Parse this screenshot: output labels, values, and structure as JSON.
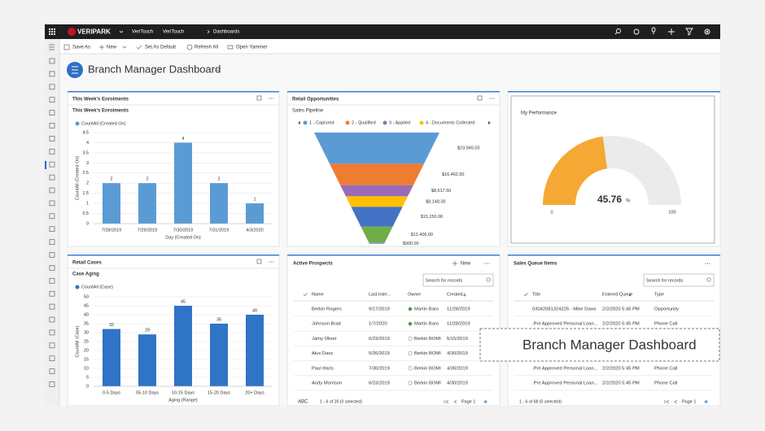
{
  "nav": {
    "brand": "VERIPARK",
    "app": "VeriTouch",
    "area": "VeriTouch",
    "page": "Dashboards"
  },
  "commands": [
    "Save As",
    "New",
    "Set As Default",
    "Refresh All",
    "Open Yammer"
  ],
  "title": "Branch Manager Dashboard",
  "callout": "Branch Manager Dashboard",
  "chart_data": [
    {
      "type": "bar",
      "panel_title": "This Week's Enrolments",
      "title": "This Week's Enrolments",
      "y_label": "CountAll (Created On)",
      "x_label": "Day (Created On)",
      "categories": [
        "7/28/2019",
        "7/29/2019",
        "7/30/2019",
        "7/31/2019",
        "4/3/2020"
      ],
      "series": [
        {
          "name": "CountAll (Created On)",
          "color": "#5b9bd5",
          "values": [
            2,
            2,
            4,
            2,
            1
          ]
        }
      ],
      "ylim": [
        0,
        4.5
      ],
      "yticks": [
        0,
        0.5,
        1,
        1.5,
        2,
        2.5,
        3,
        3.5,
        4,
        4.5
      ],
      "grid": true
    },
    {
      "type": "funnel",
      "panel_title": "Retail Opportunities",
      "title": "Sales Pipeline",
      "legend": [
        "1 - Captured",
        "2 - Qualified",
        "3 - Applied",
        "4 - Documents Collected"
      ],
      "values": [
        23945,
        16462.5,
        8517.5,
        8148,
        15150,
        12406,
        900
      ],
      "value_labels": [
        "$23,945.00",
        "$16,462.50",
        "$8,517.50",
        "$8,148.00",
        "$15,150.00",
        "$12,406.00",
        "$900.00"
      ],
      "colors": [
        "#5b9bd5",
        "#ed7d31",
        "#9b6bb5",
        "#ffc000",
        "#4472c4",
        "#70ad47",
        "#8fa8dc"
      ]
    },
    {
      "type": "gauge",
      "title": "My Performance",
      "value": 45.76,
      "unit": "%",
      "xlim": [
        0,
        100
      ],
      "color": "#f5a833"
    },
    {
      "type": "bar",
      "panel_title": "Retail Cases",
      "title": "Case Aging",
      "y_label": "CountAll (Case)",
      "x_label": "Aging (Range)",
      "categories": [
        "0-5 Days",
        "05-10 Days",
        "10-15 Days",
        "15-20 Days",
        "20+ Days"
      ],
      "series": [
        {
          "name": "CountAll (Case)",
          "color": "#2f74c6",
          "values": [
            32,
            29,
            45,
            35,
            40
          ]
        }
      ],
      "ylim": [
        0,
        50
      ],
      "yticks": [
        0,
        5,
        10,
        15,
        20,
        25,
        30,
        35,
        40,
        45,
        50
      ],
      "grid": true
    }
  ],
  "tables": [
    {
      "title": "Active Prospects",
      "new": "New",
      "search": "Search for records",
      "columns": [
        "Name",
        "Last Inter...",
        "Owner",
        "Created..."
      ],
      "rows": [
        [
          "Berkin Rogers",
          "9/17/2019",
          "Martin Baro",
          "11/28/2019"
        ],
        [
          "Johnson Brad",
          "1/7/2020",
          "Martin Baro",
          "11/28/2019"
        ],
        [
          "Jamy Oliver",
          "6/23/2019",
          "Berkin BOMI",
          "5/15/2019"
        ],
        [
          "Alux Dass",
          "5/26/2019",
          "Berkin BOMI",
          "4/30/2019"
        ],
        [
          "Paul Haris",
          "7/30/2019",
          "Berkin BOMI",
          "4/30/2019"
        ],
        [
          "Andy Morrison",
          "6/23/2019",
          "Berkin BOMI",
          "4/30/2019"
        ]
      ],
      "alpha": "ABC",
      "footer": "1 - 6 of 26 (0 selected)",
      "page": "Page 1"
    },
    {
      "title": "Sales Queue Items",
      "search": "Search for records",
      "columns": [
        "Title",
        "Entered Queue",
        "Type"
      ],
      "rows": [
        [
          "03042081324226 - Mike Daws",
          "2/2/2020 5:45 PM",
          "Opportunity"
        ],
        [
          ".Pre Approved Personal Loan...",
          "2/2/2020 5:45 PM",
          "Phone Call"
        ],
        [
          ".Pre Approved Personal Loan...",
          "2/2/2020 5:45 PM",
          "Phone Call"
        ],
        [
          ".Pre Approved Personal Loan...",
          "2/2/2020 5:45 PM",
          "Phone Call"
        ]
      ],
      "footer": "1 - 6 of 68 (0 selected)",
      "page": "Page 1"
    }
  ]
}
